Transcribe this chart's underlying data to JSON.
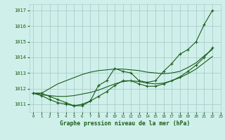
{
  "title": "Graphe pression niveau de la mer (hPa)",
  "bg_color": "#cff0ea",
  "grid_color": "#aacccc",
  "line_color": "#1a5c1a",
  "xlim": [
    -0.5,
    23
  ],
  "ylim": [
    1010.5,
    1017.4
  ],
  "yticks": [
    1011,
    1012,
    1013,
    1014,
    1015,
    1016,
    1017
  ],
  "xticks": [
    0,
    1,
    2,
    3,
    4,
    5,
    6,
    7,
    8,
    9,
    10,
    11,
    12,
    13,
    14,
    15,
    16,
    17,
    18,
    19,
    20,
    21,
    22,
    23
  ],
  "series": [
    {
      "x": [
        0,
        1,
        2,
        3,
        4,
        5,
        6,
        7,
        8,
        9,
        10,
        11,
        12,
        13,
        14,
        15,
        16,
        17,
        18,
        19,
        20,
        21,
        22
      ],
      "y": [
        1011.7,
        1011.7,
        1011.5,
        1011.3,
        1011.1,
        1010.9,
        1010.9,
        1011.2,
        1012.2,
        1012.5,
        1013.3,
        1013.1,
        1013.0,
        1012.5,
        1012.4,
        1012.5,
        1013.1,
        1013.6,
        1014.2,
        1014.5,
        1015.0,
        1016.1,
        1017.0
      ],
      "marker": true
    },
    {
      "x": [
        0,
        1,
        2,
        3,
        4,
        5,
        6,
        7,
        8,
        9,
        10,
        11,
        12,
        13,
        14,
        15,
        16,
        17,
        18,
        19,
        20,
        21,
        22
      ],
      "y": [
        1011.7,
        1011.7,
        1012.0,
        1012.3,
        1012.5,
        1012.7,
        1012.9,
        1013.05,
        1013.15,
        1013.2,
        1013.25,
        1013.25,
        1013.2,
        1013.15,
        1013.05,
        1013.0,
        1012.95,
        1013.0,
        1013.1,
        1013.35,
        1013.65,
        1014.1,
        1014.5
      ],
      "marker": false
    },
    {
      "x": [
        0,
        1,
        2,
        3,
        4,
        5,
        6,
        7,
        8,
        9,
        10,
        11,
        12,
        13,
        14,
        15,
        16,
        17,
        18,
        19,
        20,
        21,
        22
      ],
      "y": [
        1011.7,
        1011.6,
        1011.55,
        1011.5,
        1011.5,
        1011.55,
        1011.65,
        1011.75,
        1011.9,
        1012.1,
        1012.3,
        1012.45,
        1012.5,
        1012.45,
        1012.35,
        1012.3,
        1012.35,
        1012.5,
        1012.7,
        1012.95,
        1013.25,
        1013.65,
        1014.05
      ],
      "marker": false
    },
    {
      "x": [
        0,
        1,
        2,
        3,
        4,
        5,
        6,
        7,
        8,
        9,
        10,
        11,
        12,
        13,
        14,
        15,
        16,
        17,
        18,
        19,
        20,
        21,
        22
      ],
      "y": [
        1011.7,
        1011.55,
        1011.3,
        1011.1,
        1011.0,
        1010.9,
        1011.0,
        1011.2,
        1011.5,
        1011.8,
        1012.2,
        1012.5,
        1012.5,
        1012.3,
        1012.15,
        1012.15,
        1012.3,
        1012.5,
        1012.75,
        1013.1,
        1013.5,
        1014.0,
        1014.6
      ],
      "marker": true
    }
  ]
}
